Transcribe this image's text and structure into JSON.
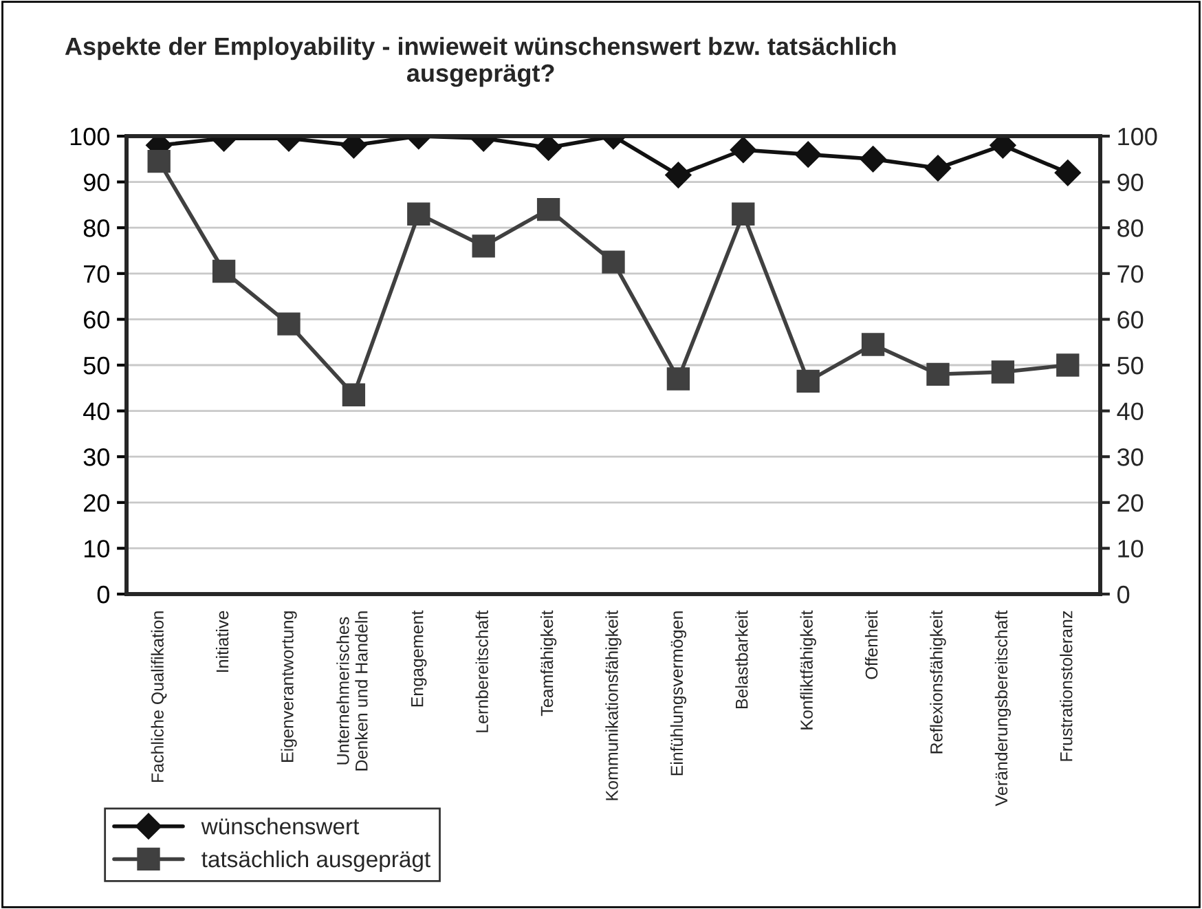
{
  "chart_data": {
    "type": "line",
    "title": "Aspekte der Employability - inwieweit wünschenswert bzw. tatsächlich ausgeprägt?",
    "categories": [
      "Fachliche Qualifikation",
      "Initiative",
      "Eigenverantwortung",
      "Unternehmerisches\nDenken und Handeln",
      "Engagement",
      "Lernbereitschaft",
      "Teamfähigkeit",
      "Kommunikationsfähigkeit",
      "Einfühlungsvermögen",
      "Belastbarkeit",
      "Konfliktfähigkeit",
      "Offenheit",
      "Reflexionsfähigkeit",
      "Veränderungsbereitschaft",
      "Frustrationstoleranz"
    ],
    "series": [
      {
        "name": "wünschenswert",
        "color": "#111111",
        "marker": "diamond",
        "values": [
          98,
          99.5,
          99.5,
          98,
          100,
          99.5,
          97.5,
          100,
          91.5,
          97,
          96,
          95,
          93,
          98,
          92
        ]
      },
      {
        "name": "tatsächlich ausgeprägt",
        "color": "#404040",
        "marker": "square",
        "values": [
          94.5,
          70.5,
          59,
          43.5,
          83,
          76,
          84,
          72.5,
          47,
          83,
          46.5,
          54.5,
          48,
          48.5,
          50
        ]
      }
    ],
    "ylim": [
      0,
      100
    ],
    "yticks": [
      0,
      10,
      20,
      30,
      40,
      50,
      60,
      70,
      80,
      90,
      100
    ],
    "y2lim": [
      0,
      100
    ],
    "y2ticks": [
      0,
      10,
      20,
      30,
      40,
      50,
      60,
      70,
      80,
      90,
      100
    ],
    "grid": "y",
    "legend": "bottom left",
    "line_style": "solid"
  }
}
